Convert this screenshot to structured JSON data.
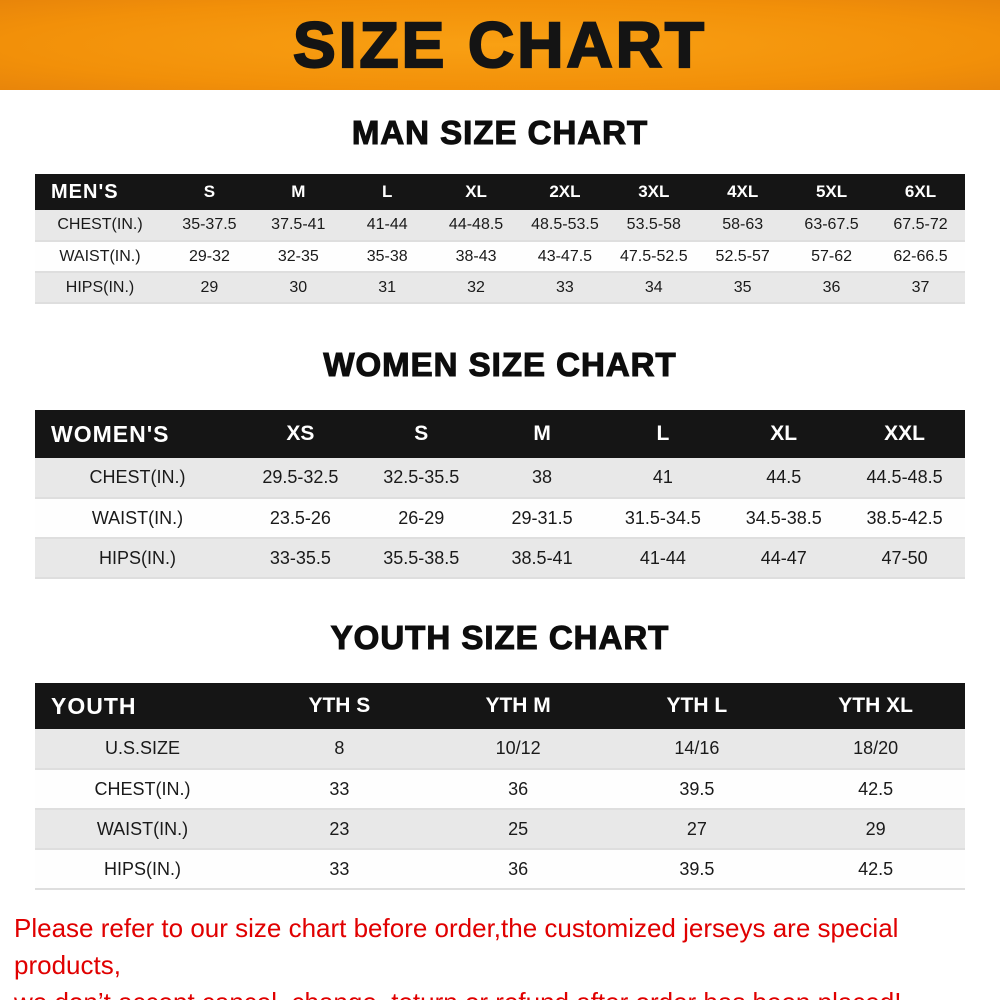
{
  "banner": {
    "title": "SIZE CHART"
  },
  "colors": {
    "banner_orange": "#F29009",
    "header_black": "#151515",
    "stripe_gray": "#E8E8E8",
    "disclaimer_red": "#E00000"
  },
  "chart_data": [
    {
      "type": "table",
      "title": "MAN SIZE CHART",
      "columns": [
        "MEN'S",
        "S",
        "M",
        "L",
        "XL",
        "2XL",
        "3XL",
        "4XL",
        "5XL",
        "6XL"
      ],
      "rows": [
        [
          "CHEST(IN.)",
          "35-37.5",
          "37.5-41",
          "41-44",
          "44-48.5",
          "48.5-53.5",
          "53.5-58",
          "58-63",
          "63-67.5",
          "67.5-72"
        ],
        [
          "WAIST(IN.)",
          "29-32",
          "32-35",
          "35-38",
          "38-43",
          "43-47.5",
          "47.5-52.5",
          "52.5-57",
          "57-62",
          "62-66.5"
        ],
        [
          "HIPS(IN.)",
          "29",
          "30",
          "31",
          "32",
          "33",
          "34",
          "35",
          "36",
          "37"
        ]
      ]
    },
    {
      "type": "table",
      "title": "WOMEN SIZE CHART",
      "columns": [
        "WOMEN'S",
        "XS",
        "S",
        "M",
        "L",
        "XL",
        "XXL"
      ],
      "rows": [
        [
          "CHEST(IN.)",
          "29.5-32.5",
          "32.5-35.5",
          "38",
          "41",
          "44.5",
          "44.5-48.5"
        ],
        [
          "WAIST(IN.)",
          "23.5-26",
          "26-29",
          "29-31.5",
          "31.5-34.5",
          "34.5-38.5",
          "38.5-42.5"
        ],
        [
          "HIPS(IN.)",
          "33-35.5",
          "35.5-38.5",
          "38.5-41",
          "41-44",
          "44-47",
          "47-50"
        ]
      ]
    },
    {
      "type": "table",
      "title": "YOUTH SIZE CHART",
      "columns": [
        "YOUTH",
        "YTH S",
        "YTH M",
        "YTH L",
        "YTH XL"
      ],
      "rows": [
        [
          "U.S.SIZE",
          "8",
          "10/12",
          "14/16",
          "18/20"
        ],
        [
          "CHEST(IN.)",
          "33",
          "36",
          "39.5",
          "42.5"
        ],
        [
          "WAIST(IN.)",
          "23",
          "25",
          "27",
          "29"
        ],
        [
          "HIPS(IN.)",
          "33",
          "36",
          "39.5",
          "42.5"
        ]
      ]
    }
  ],
  "footer": {
    "lines": [
      "Please refer to our size chart before order,the customized jerseys are special products,",
      "we don’t accept cancel, change, teturn or refund after order has been placed!"
    ]
  }
}
